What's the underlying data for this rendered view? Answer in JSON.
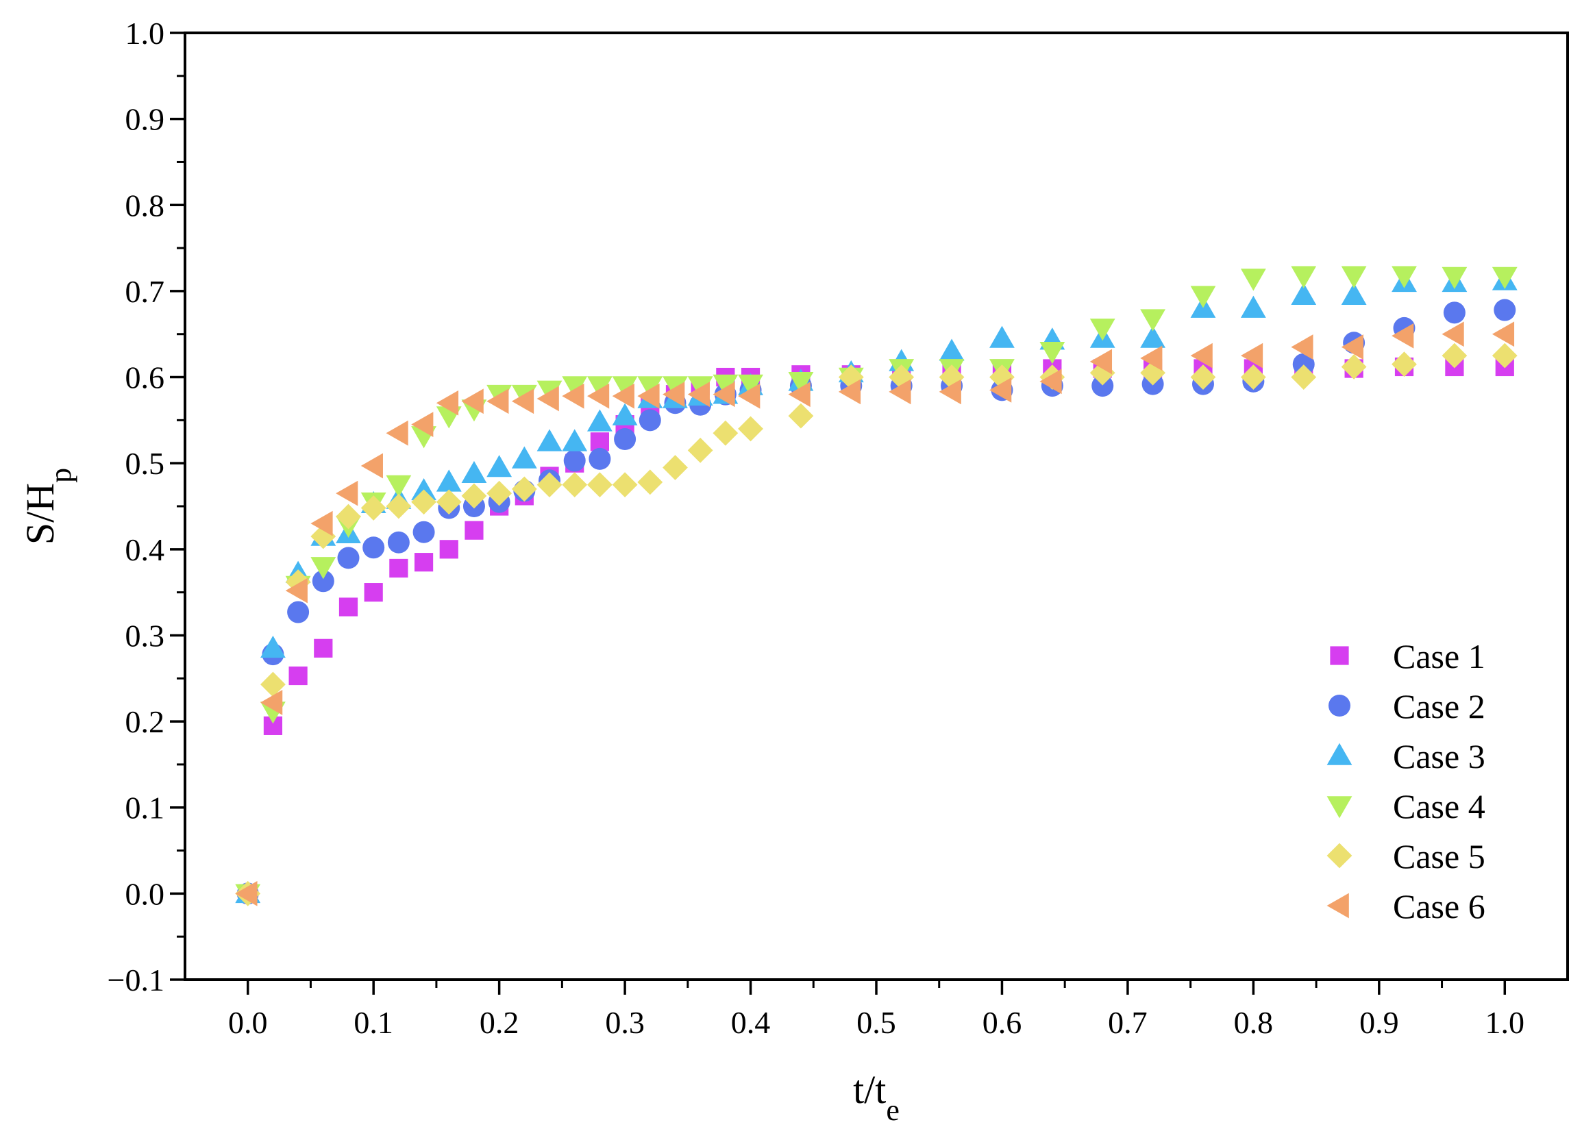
{
  "chart_data": {
    "type": "scatter",
    "title": "",
    "xlabel": {
      "main": "t/t",
      "sub": "e"
    },
    "ylabel": {
      "main": "S/H",
      "sub": "p"
    },
    "xlim": [
      -0.05,
      1.05
    ],
    "ylim": [
      -0.1,
      1.0
    ],
    "xticks": [
      0.0,
      0.1,
      0.2,
      0.3,
      0.4,
      0.5,
      0.6,
      0.7,
      0.8,
      0.9,
      1.0
    ],
    "yticks": [
      -0.1,
      0.0,
      0.1,
      0.2,
      0.3,
      0.4,
      0.5,
      0.6,
      0.7,
      0.8,
      0.9,
      1.0
    ],
    "xtick_labels": [
      "0.0",
      "0.1",
      "0.2",
      "0.3",
      "0.4",
      "0.5",
      "0.6",
      "0.7",
      "0.8",
      "0.9",
      "1.0"
    ],
    "ytick_labels": [
      "−0.1",
      "0.0",
      "0.1",
      "0.2",
      "0.3",
      "0.4",
      "0.5",
      "0.6",
      "0.7",
      "0.8",
      "0.9",
      "1.0"
    ],
    "grid": false,
    "legend_position": "bottom-right",
    "x": [
      0.0,
      0.02,
      0.04,
      0.06,
      0.08,
      0.1,
      0.12,
      0.14,
      0.16,
      0.18,
      0.2,
      0.22,
      0.24,
      0.26,
      0.28,
      0.3,
      0.32,
      0.34,
      0.36,
      0.38,
      0.4,
      0.44,
      0.48,
      0.52,
      0.56,
      0.6,
      0.64,
      0.68,
      0.72,
      0.76,
      0.8,
      0.84,
      0.88,
      0.92,
      0.96,
      1.0
    ],
    "series": [
      {
        "name": "Case 1",
        "marker": "square",
        "color": "#d63ef0",
        "values": [
          0.0,
          0.195,
          0.253,
          0.285,
          0.333,
          0.35,
          0.378,
          0.385,
          0.4,
          0.422,
          0.45,
          0.462,
          0.485,
          0.5,
          0.525,
          0.545,
          0.565,
          0.58,
          0.59,
          0.6,
          0.6,
          0.603,
          0.603,
          0.605,
          0.605,
          0.61,
          0.61,
          0.61,
          0.61,
          0.61,
          0.61,
          0.61,
          0.61,
          0.612,
          0.612,
          0.612
        ]
      },
      {
        "name": "Case 2",
        "marker": "circle",
        "color": "#5a78ee",
        "values": [
          0.0,
          0.278,
          0.327,
          0.363,
          0.39,
          0.402,
          0.408,
          0.42,
          0.448,
          0.45,
          0.455,
          0.468,
          0.48,
          0.503,
          0.505,
          0.528,
          0.55,
          0.57,
          0.568,
          0.58,
          0.585,
          0.59,
          0.59,
          0.59,
          0.59,
          0.585,
          0.59,
          0.59,
          0.592,
          0.592,
          0.595,
          0.615,
          0.64,
          0.657,
          0.675,
          0.678
        ]
      },
      {
        "name": "Case 3",
        "marker": "triangle-up",
        "color": "#45b6f2",
        "values": [
          0.0,
          0.285,
          0.372,
          0.415,
          0.418,
          0.453,
          0.458,
          0.468,
          0.478,
          0.488,
          0.495,
          0.505,
          0.525,
          0.525,
          0.548,
          0.555,
          0.575,
          0.575,
          0.578,
          0.58,
          0.59,
          0.595,
          0.605,
          0.618,
          0.63,
          0.645,
          0.643,
          0.645,
          0.645,
          0.68,
          0.68,
          0.695,
          0.695,
          0.71,
          0.71,
          0.712
        ]
      },
      {
        "name": "Case 4",
        "marker": "triangle-down",
        "color": "#b6f05e",
        "values": [
          0.0,
          0.212,
          0.358,
          0.38,
          0.428,
          0.455,
          0.475,
          0.532,
          0.555,
          0.563,
          0.58,
          0.58,
          0.585,
          0.59,
          0.59,
          0.59,
          0.59,
          0.59,
          0.59,
          0.592,
          0.592,
          0.595,
          0.6,
          0.61,
          0.61,
          0.61,
          0.63,
          0.657,
          0.668,
          0.695,
          0.715,
          0.718,
          0.718,
          0.718,
          0.717,
          0.717
        ]
      },
      {
        "name": "Case 5",
        "marker": "diamond",
        "color": "#ece070",
        "values": [
          0.0,
          0.243,
          0.362,
          0.415,
          0.438,
          0.448,
          0.45,
          0.455,
          0.455,
          0.462,
          0.465,
          0.47,
          0.475,
          0.475,
          0.475,
          0.475,
          0.478,
          0.495,
          0.515,
          0.535,
          0.54,
          0.555,
          0.6,
          0.6,
          0.6,
          0.6,
          0.6,
          0.605,
          0.605,
          0.6,
          0.6,
          0.6,
          0.612,
          0.615,
          0.625,
          0.625
        ]
      },
      {
        "name": "Case 6",
        "marker": "triangle-left",
        "color": "#f3a26a",
        "values": [
          0.0,
          0.222,
          0.352,
          0.43,
          0.465,
          0.497,
          0.535,
          0.545,
          0.57,
          0.572,
          0.572,
          0.572,
          0.575,
          0.578,
          0.578,
          0.578,
          0.578,
          0.58,
          0.58,
          0.58,
          0.578,
          0.58,
          0.583,
          0.583,
          0.583,
          0.585,
          0.595,
          0.618,
          0.622,
          0.625,
          0.625,
          0.635,
          0.635,
          0.648,
          0.65,
          0.65
        ]
      }
    ]
  }
}
